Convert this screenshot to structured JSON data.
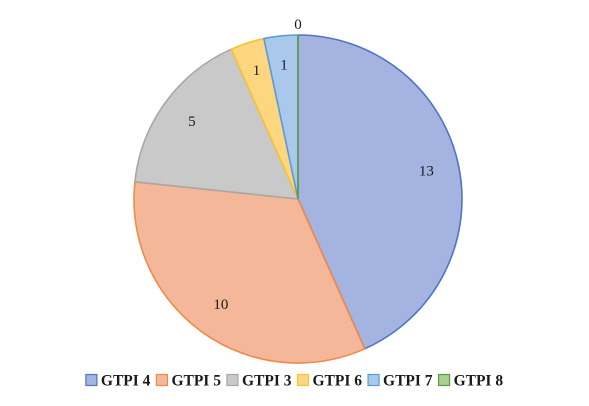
{
  "chart_data": {
    "type": "pie",
    "title": "",
    "legend_position": "bottom",
    "slices": [
      {
        "label": "GTPI 4",
        "value": 13,
        "color": "#a4b3e0",
        "stroke": "#4f74c8"
      },
      {
        "label": "GTPI 5",
        "value": 10,
        "color": "#f5b79a",
        "stroke": "#f08a48"
      },
      {
        "label": "GTPI 3",
        "value": 5,
        "color": "#c9c9c9",
        "stroke": "#a8a8a8"
      },
      {
        "label": "GTPI 6",
        "value": 1,
        "color": "#fed680",
        "stroke": "#f7c233"
      },
      {
        "label": "GTPI 7",
        "value": 1,
        "color": "#a9c8eb",
        "stroke": "#5b9bd5"
      },
      {
        "label": "GTPI 8",
        "value": 0,
        "color": "#a9d18e",
        "stroke": "#5e9b3c"
      }
    ]
  }
}
